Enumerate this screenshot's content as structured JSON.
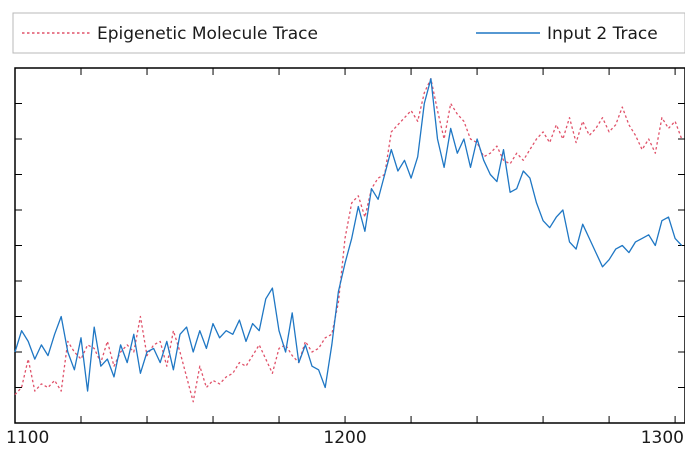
{
  "chart_data": {
    "type": "line",
    "title": "",
    "xlabel": "",
    "ylabel": "",
    "xlim": [
      1100,
      1303
    ],
    "ylim": [
      0,
      1
    ],
    "x_ticks": [
      1100,
      1200,
      1300
    ],
    "x_tick_labels": [
      "1100",
      "1200",
      "1300"
    ],
    "x_minor_tick_step": 20,
    "y_tick_count": 9,
    "y_tick_labels_shown": false,
    "grid": false,
    "legend_placement": "top, above plot",
    "series": [
      {
        "name": "Epigenetic Molecule Trace",
        "color": "#e0526a",
        "line_style": "dotted",
        "x": [
          1100,
          1102,
          1104,
          1106,
          1108,
          1110,
          1112,
          1114,
          1116,
          1118,
          1120,
          1122,
          1124,
          1126,
          1128,
          1130,
          1132,
          1134,
          1136,
          1138,
          1140,
          1142,
          1144,
          1146,
          1148,
          1150,
          1152,
          1154,
          1156,
          1158,
          1160,
          1162,
          1164,
          1166,
          1168,
          1170,
          1172,
          1174,
          1176,
          1178,
          1180,
          1182,
          1184,
          1186,
          1188,
          1190,
          1192,
          1194,
          1196,
          1198,
          1200,
          1202,
          1204,
          1206,
          1208,
          1210,
          1212,
          1214,
          1216,
          1218,
          1220,
          1222,
          1224,
          1226,
          1228,
          1230,
          1232,
          1234,
          1236,
          1238,
          1240,
          1242,
          1244,
          1246,
          1248,
          1250,
          1252,
          1254,
          1256,
          1258,
          1260,
          1262,
          1264,
          1266,
          1268,
          1270,
          1272,
          1274,
          1276,
          1278,
          1280,
          1282,
          1284,
          1286,
          1288,
          1290,
          1292,
          1294,
          1296,
          1298,
          1300,
          1302
        ],
        "y": [
          0.08,
          0.1,
          0.18,
          0.09,
          0.11,
          0.1,
          0.12,
          0.09,
          0.23,
          0.2,
          0.18,
          0.22,
          0.21,
          0.17,
          0.23,
          0.16,
          0.2,
          0.22,
          0.2,
          0.3,
          0.19,
          0.22,
          0.23,
          0.16,
          0.26,
          0.2,
          0.13,
          0.06,
          0.16,
          0.1,
          0.12,
          0.11,
          0.13,
          0.14,
          0.17,
          0.16,
          0.19,
          0.22,
          0.18,
          0.14,
          0.21,
          0.22,
          0.19,
          0.17,
          0.23,
          0.2,
          0.21,
          0.24,
          0.25,
          0.34,
          0.52,
          0.62,
          0.64,
          0.58,
          0.66,
          0.69,
          0.7,
          0.82,
          0.84,
          0.86,
          0.88,
          0.85,
          0.93,
          0.97,
          0.88,
          0.8,
          0.9,
          0.87,
          0.85,
          0.8,
          0.79,
          0.75,
          0.76,
          0.78,
          0.74,
          0.73,
          0.76,
          0.74,
          0.77,
          0.8,
          0.82,
          0.79,
          0.84,
          0.8,
          0.86,
          0.79,
          0.85,
          0.81,
          0.83,
          0.86,
          0.82,
          0.84,
          0.89,
          0.84,
          0.81,
          0.77,
          0.8,
          0.76,
          0.86,
          0.83,
          0.85,
          0.8
        ]
      },
      {
        "name": "Input 2 Trace",
        "color": "#1f77c4",
        "line_style": "solid",
        "x": [
          1100,
          1102,
          1104,
          1106,
          1108,
          1110,
          1112,
          1114,
          1116,
          1118,
          1120,
          1122,
          1124,
          1126,
          1128,
          1130,
          1132,
          1134,
          1136,
          1138,
          1140,
          1142,
          1144,
          1146,
          1148,
          1150,
          1152,
          1154,
          1156,
          1158,
          1160,
          1162,
          1164,
          1166,
          1168,
          1170,
          1172,
          1174,
          1176,
          1178,
          1180,
          1182,
          1184,
          1186,
          1188,
          1190,
          1192,
          1194,
          1196,
          1198,
          1200,
          1202,
          1204,
          1206,
          1208,
          1210,
          1212,
          1214,
          1216,
          1218,
          1220,
          1222,
          1224,
          1226,
          1228,
          1230,
          1232,
          1234,
          1236,
          1238,
          1240,
          1242,
          1244,
          1246,
          1248,
          1250,
          1252,
          1254,
          1256,
          1258,
          1260,
          1262,
          1264,
          1266,
          1268,
          1270,
          1272,
          1274,
          1276,
          1278,
          1280,
          1282,
          1284,
          1286,
          1288,
          1290,
          1292,
          1294,
          1296,
          1298,
          1300,
          1302
        ],
        "y": [
          0.2,
          0.26,
          0.23,
          0.18,
          0.22,
          0.19,
          0.25,
          0.3,
          0.2,
          0.15,
          0.24,
          0.09,
          0.27,
          0.16,
          0.18,
          0.13,
          0.22,
          0.17,
          0.25,
          0.14,
          0.2,
          0.21,
          0.17,
          0.23,
          0.15,
          0.25,
          0.27,
          0.2,
          0.26,
          0.21,
          0.28,
          0.24,
          0.26,
          0.25,
          0.29,
          0.23,
          0.28,
          0.26,
          0.35,
          0.38,
          0.26,
          0.2,
          0.31,
          0.17,
          0.22,
          0.16,
          0.15,
          0.1,
          0.22,
          0.37,
          0.45,
          0.52,
          0.61,
          0.54,
          0.66,
          0.63,
          0.7,
          0.77,
          0.71,
          0.74,
          0.69,
          0.75,
          0.9,
          0.97,
          0.8,
          0.72,
          0.83,
          0.76,
          0.8,
          0.72,
          0.8,
          0.74,
          0.7,
          0.68,
          0.77,
          0.65,
          0.66,
          0.71,
          0.69,
          0.62,
          0.57,
          0.55,
          0.58,
          0.6,
          0.51,
          0.49,
          0.56,
          0.52,
          0.48,
          0.44,
          0.46,
          0.49,
          0.5,
          0.48,
          0.51,
          0.52,
          0.53,
          0.5,
          0.57,
          0.58,
          0.52,
          0.5
        ]
      }
    ]
  }
}
